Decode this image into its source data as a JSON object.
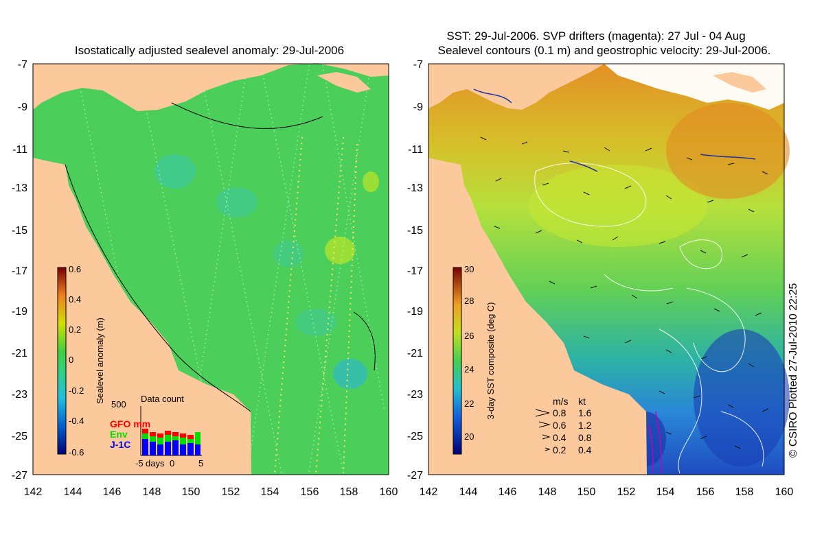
{
  "left_panel": {
    "title": "Isostatically adjusted sealevel anomaly: 29-Jul-2006",
    "colorbar_label": "Sealevel anomaly (m)",
    "colorbar_ticks": [
      "0.6",
      "0.4",
      "0.2",
      "0",
      "-0.2",
      "-0.4",
      "-0.6"
    ],
    "data_count": {
      "title": "Data count",
      "ymax_label": "500",
      "series": [
        "GFO mm",
        "Env",
        "J-1C"
      ],
      "series_colors": [
        "#ff0000",
        "#00dd00",
        "#0000ff"
      ],
      "x_labels": [
        "-5",
        "days",
        "0",
        "5"
      ]
    }
  },
  "right_panel": {
    "title_line1": "SST: 29-Jul-2006. SVP drifters (magenta): 27 Jul - 04 Aug",
    "title_line2": "Sealevel contours (0.1 m) and geostrophic velocity: 29-Jul-2006.",
    "colorbar_label": "3-day SST composite (deg C)",
    "colorbar_ticks": [
      "30",
      "28",
      "26",
      "24",
      "22",
      "20"
    ],
    "velocity_legend": {
      "header_ms": "m/s",
      "header_kt": "kt",
      "rows": [
        {
          "ms": "0.8",
          "kt": "1.6"
        },
        {
          "ms": "0.6",
          "kt": "1.2"
        },
        {
          "ms": "0.4",
          "kt": "0.8"
        },
        {
          "ms": "0.2",
          "kt": "0.4"
        }
      ]
    }
  },
  "axes": {
    "y_ticks": [
      "-7",
      "-9",
      "-11",
      "-13",
      "-15",
      "-17",
      "-19",
      "-21",
      "-23",
      "-25",
      "-27"
    ],
    "x_ticks": [
      "142",
      "144",
      "146",
      "148",
      "150",
      "152",
      "154",
      "156",
      "158",
      "160"
    ]
  },
  "credit": "© CSIRO Plotted 27-Jul-2010 22:25",
  "colors": {
    "land": "#fbc99b",
    "ocean_sla": "#4ccf5a",
    "sst_warm": "#e0a020",
    "sst_mid": "#b9e23a",
    "sst_cool": "#2a7fd6"
  }
}
